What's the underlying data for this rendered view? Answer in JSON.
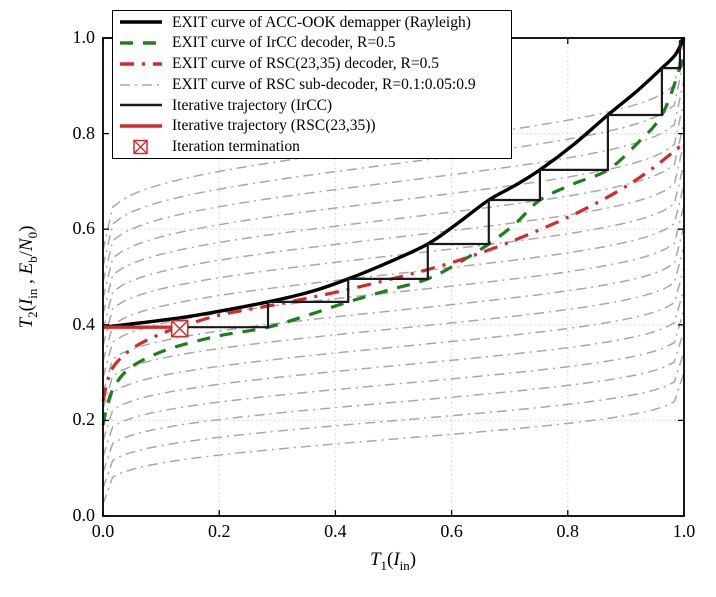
{
  "figure": {
    "kind": "EXIT chart"
  },
  "colors": {
    "demapper": "#000000",
    "ircc": "#1e7d1e",
    "rsc": "#d42a2a",
    "sub_decoder": "#a8a8a8",
    "trajectory_ircc": "#1a1a1a",
    "trajectory_rsc": "#d42a2a",
    "grid": "#cfcfcf",
    "frame": "#000000"
  },
  "axes": {
    "x": {
      "ticks": [
        "0.0",
        "0.2",
        "0.4",
        "0.6",
        "0.8",
        "1.0"
      ],
      "range": [
        0,
        1
      ],
      "label_parts": {
        "T": "T",
        "Tsub": "1",
        "open": "(",
        "I": "I",
        "Isub": "in",
        "close": ")"
      }
    },
    "y": {
      "ticks": [
        "0.0",
        "0.2",
        "0.4",
        "0.6",
        "0.8",
        "1.0"
      ],
      "range": [
        0,
        1
      ],
      "label_parts": {
        "T": "T",
        "Tsub": "2",
        "open": "(",
        "I": "I",
        "Isub": "in",
        "comma": " , ",
        "E": "E",
        "Esub": "b",
        "slash": "/",
        "N": "N",
        "Nsub": "0",
        "close": ")"
      }
    }
  },
  "legend": {
    "items": [
      {
        "label": "EXIT curve of ACC-OOK demapper  (Rayleigh)",
        "style": "solid",
        "color": "#000000"
      },
      {
        "label": "EXIT curve of IrCC decoder, R=0.5",
        "style": "dashed",
        "color": "#1e7d1e"
      },
      {
        "label": "EXIT curve of RSC(23,35) decoder, R=0.5",
        "style": "dashdot",
        "color": "#d42a2a"
      },
      {
        "label": "EXIT curve of RSC sub-decoder, R=0.1:0.05:0.9",
        "style": "dashdot",
        "color": "#a8a8a8"
      },
      {
        "label": "Iterative trajectory (IrCC)",
        "style": "solid",
        "color": "#1a1a1a"
      },
      {
        "label": "Iterative trajectory (RSC(23,35))",
        "style": "solid",
        "color": "#d42a2a"
      },
      {
        "label": "Iteration termination",
        "style": "marker",
        "color": "#d42a2a"
      }
    ]
  },
  "chart_data": {
    "type": "line",
    "title": "",
    "xlabel": "T1(Iin)",
    "ylabel": "T2(Iin , Eb/N0)",
    "xlim": [
      0,
      1
    ],
    "ylim": [
      0,
      1
    ],
    "grid": "dotted at 0.2/0.4/0.6/0.8 both axes",
    "legend_position": "top-left",
    "series": [
      {
        "name": "EXIT curve of IrCC decoder, R=0.5",
        "color": "#1e7d1e",
        "style": "dashed",
        "width": 3.2,
        "smooth": true,
        "points": [
          [
            0,
            0.19
          ],
          [
            0.008,
            0.235
          ],
          [
            0.02,
            0.272
          ],
          [
            0.04,
            0.303
          ],
          [
            0.07,
            0.327
          ],
          [
            0.12,
            0.352
          ],
          [
            0.2,
            0.377
          ],
          [
            0.284,
            0.395
          ],
          [
            0.36,
            0.423
          ],
          [
            0.422,
            0.448
          ],
          [
            0.49,
            0.472
          ],
          [
            0.559,
            0.496
          ],
          [
            0.61,
            0.528
          ],
          [
            0.664,
            0.569
          ],
          [
            0.71,
            0.612
          ],
          [
            0.752,
            0.661
          ],
          [
            0.81,
            0.695
          ],
          [
            0.869,
            0.724
          ],
          [
            0.92,
            0.78
          ],
          [
            0.962,
            0.839
          ],
          [
            0.993,
            0.937
          ],
          [
            1,
            0.965
          ]
        ]
      },
      {
        "name": "EXIT curve of RSC(23,35) decoder, R=0.5",
        "color": "#d42a2a",
        "style": "dashdot",
        "width": 3.2,
        "smooth": true,
        "points": [
          [
            0,
            0.24
          ],
          [
            0.008,
            0.283
          ],
          [
            0.02,
            0.316
          ],
          [
            0.05,
            0.35
          ],
          [
            0.09,
            0.376
          ],
          [
            0.132,
            0.395
          ],
          [
            0.2,
            0.42
          ],
          [
            0.3,
            0.443
          ],
          [
            0.4,
            0.468
          ],
          [
            0.5,
            0.497
          ],
          [
            0.6,
            0.53
          ],
          [
            0.7,
            0.573
          ],
          [
            0.8,
            0.625
          ],
          [
            0.88,
            0.675
          ],
          [
            0.94,
            0.722
          ],
          [
            1,
            0.78
          ]
        ]
      },
      {
        "name": "EXIT curve of ACC-OOK demapper (Rayleigh)",
        "color": "#000000",
        "style": "solid",
        "width": 3.4,
        "smooth": true,
        "points": [
          [
            0,
            0.395
          ],
          [
            0.14,
            0.416
          ],
          [
            0.284,
            0.448
          ],
          [
            0.36,
            0.47
          ],
          [
            0.422,
            0.496
          ],
          [
            0.49,
            0.53
          ],
          [
            0.559,
            0.569
          ],
          [
            0.61,
            0.612
          ],
          [
            0.664,
            0.661
          ],
          [
            0.71,
            0.692
          ],
          [
            0.752,
            0.724
          ],
          [
            0.81,
            0.777
          ],
          [
            0.869,
            0.839
          ],
          [
            0.92,
            0.89
          ],
          [
            0.962,
            0.937
          ],
          [
            0.985,
            0.965
          ],
          [
            1,
            1
          ]
        ]
      },
      {
        "name": "Iterative trajectory (IrCC)",
        "color": "#1a1a1a",
        "style": "solid",
        "width": 2.2,
        "smooth": false,
        "points": [
          [
            0,
            0.395
          ],
          [
            0.284,
            0.395
          ],
          [
            0.284,
            0.448
          ],
          [
            0.422,
            0.448
          ],
          [
            0.422,
            0.496
          ],
          [
            0.559,
            0.496
          ],
          [
            0.559,
            0.569
          ],
          [
            0.664,
            0.569
          ],
          [
            0.664,
            0.661
          ],
          [
            0.752,
            0.661
          ],
          [
            0.752,
            0.724
          ],
          [
            0.869,
            0.724
          ],
          [
            0.869,
            0.839
          ],
          [
            0.962,
            0.839
          ],
          [
            0.962,
            0.937
          ],
          [
            0.993,
            0.937
          ],
          [
            0.993,
            0.993
          ],
          [
            1,
            1
          ]
        ]
      },
      {
        "name": "Iterative trajectory (RSC(23,35))",
        "color": "#d42a2a",
        "style": "solid",
        "width": 3.4,
        "smooth": false,
        "points": [
          [
            0,
            0.395
          ],
          [
            0.132,
            0.395
          ]
        ]
      }
    ],
    "sub_decoder_family": {
      "name": "EXIT curve of RSC sub-decoder",
      "r_values": "0.1:0.05:0.9",
      "count": 17,
      "color": "#a8a8a8",
      "style": "dashdot",
      "width": 1.5,
      "shape_exponents": [
        0.22,
        0.2
      ],
      "endpoints": [
        [
          0.025,
          0.3
        ],
        [
          0.058,
          0.344
        ],
        [
          0.091,
          0.388
        ],
        [
          0.124,
          0.431
        ],
        [
          0.157,
          0.475
        ],
        [
          0.191,
          0.519
        ],
        [
          0.224,
          0.563
        ],
        [
          0.257,
          0.606
        ],
        [
          0.29,
          0.65
        ],
        [
          0.323,
          0.694
        ],
        [
          0.356,
          0.738
        ],
        [
          0.389,
          0.781
        ],
        [
          0.422,
          0.825
        ],
        [
          0.455,
          0.869
        ],
        [
          0.489,
          0.913
        ],
        [
          0.522,
          0.956
        ],
        [
          0.555,
          1.0
        ]
      ]
    },
    "termination_marker": {
      "x": 0.132,
      "y": 0.392,
      "color": "#d42a2a",
      "shape": "boxed-x"
    }
  }
}
